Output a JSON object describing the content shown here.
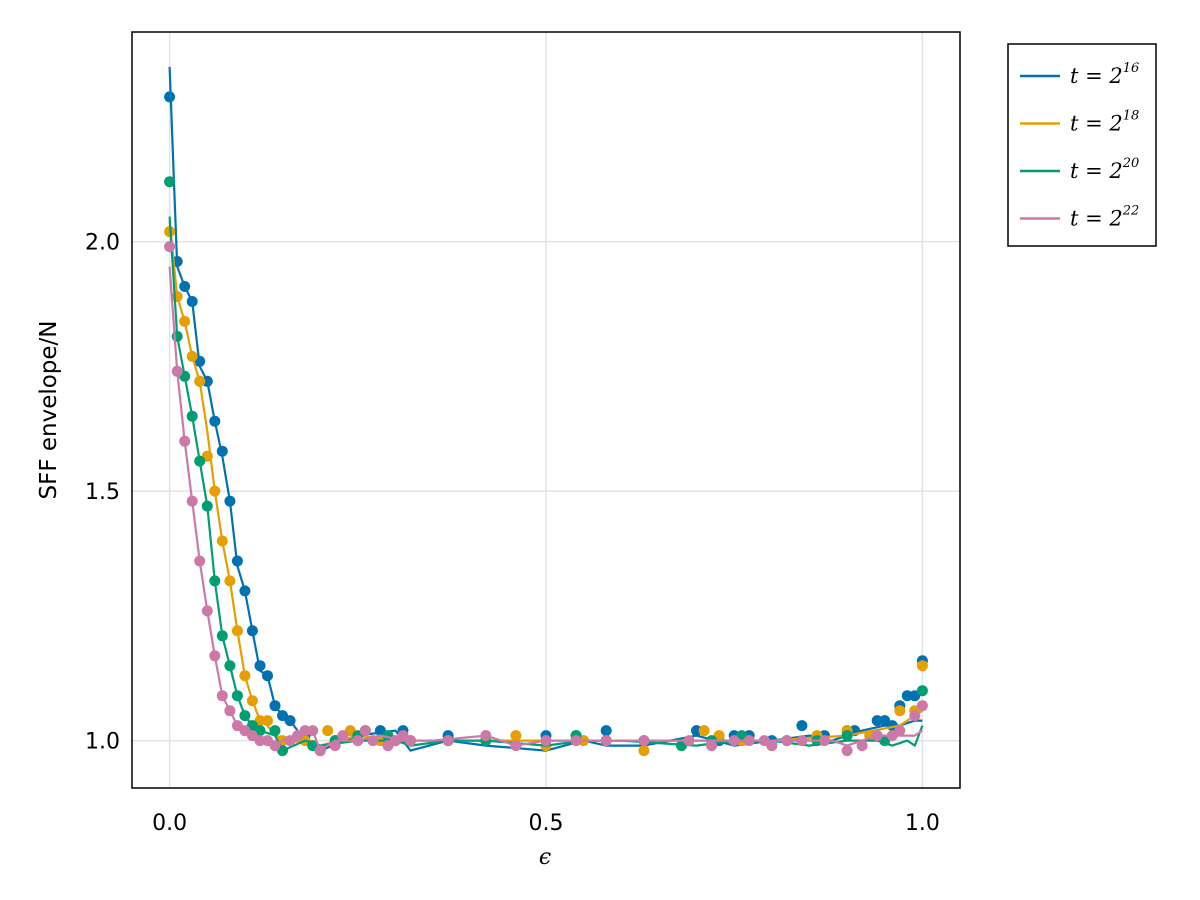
{
  "chart_data": {
    "type": "line",
    "xlabel": "ϵ",
    "ylabel": "SFF envelope/N",
    "xlim": [
      -0.05,
      1.05
    ],
    "ylim": [
      0.905,
      2.42
    ],
    "xticks": [
      0.0,
      0.5,
      1.0
    ],
    "xtick_labels": [
      "0.0",
      "0.5",
      "1.0"
    ],
    "yticks": [
      1.0,
      1.5,
      2.0
    ],
    "ytick_labels": [
      "1.0",
      "1.5",
      "2.0"
    ],
    "grid": true,
    "legend_position": "outside-top-right",
    "series": [
      {
        "name": "t = 2^16",
        "legend_base": "t = 2",
        "legend_exp": "16",
        "color": "#0072b2",
        "line": [
          [
            0.0,
            2.35
          ],
          [
            0.01,
            1.95
          ],
          [
            0.02,
            1.91
          ],
          [
            0.03,
            1.88
          ],
          [
            0.04,
            1.75
          ],
          [
            0.05,
            1.72
          ],
          [
            0.06,
            1.64
          ],
          [
            0.07,
            1.57
          ],
          [
            0.08,
            1.48
          ],
          [
            0.09,
            1.35
          ],
          [
            0.1,
            1.3
          ],
          [
            0.11,
            1.22
          ],
          [
            0.12,
            1.14
          ],
          [
            0.13,
            1.13
          ],
          [
            0.14,
            1.07
          ],
          [
            0.15,
            1.05
          ],
          [
            0.16,
            1.04
          ],
          [
            0.18,
            1.0
          ],
          [
            0.2,
            0.98
          ],
          [
            0.25,
            1.01
          ],
          [
            0.3,
            1.02
          ],
          [
            0.32,
            0.98
          ],
          [
            0.37,
            1.0
          ],
          [
            0.42,
            0.99
          ],
          [
            0.5,
            0.98
          ],
          [
            0.55,
            1.0
          ],
          [
            0.58,
            0.99
          ],
          [
            0.63,
            0.99
          ],
          [
            0.7,
            1.01
          ],
          [
            0.75,
            0.99
          ],
          [
            0.8,
            1.0
          ],
          [
            0.85,
            1.01
          ],
          [
            0.88,
            1.0
          ],
          [
            0.92,
            1.02
          ],
          [
            0.95,
            1.03
          ],
          [
            0.97,
            1.03
          ],
          [
            0.99,
            1.04
          ],
          [
            1.0,
            1.04
          ]
        ],
        "points": [
          [
            0.0,
            2.29
          ],
          [
            0.01,
            1.96
          ],
          [
            0.02,
            1.91
          ],
          [
            0.03,
            1.88
          ],
          [
            0.04,
            1.76
          ],
          [
            0.05,
            1.72
          ],
          [
            0.06,
            1.64
          ],
          [
            0.07,
            1.58
          ],
          [
            0.08,
            1.48
          ],
          [
            0.09,
            1.36
          ],
          [
            0.1,
            1.3
          ],
          [
            0.11,
            1.22
          ],
          [
            0.12,
            1.15
          ],
          [
            0.13,
            1.13
          ],
          [
            0.14,
            1.07
          ],
          [
            0.15,
            1.05
          ],
          [
            0.16,
            1.04
          ],
          [
            0.18,
            1.01
          ],
          [
            0.2,
            0.98
          ],
          [
            0.22,
            1.0
          ],
          [
            0.26,
            1.02
          ],
          [
            0.28,
            1.02
          ],
          [
            0.31,
            1.02
          ],
          [
            0.37,
            1.01
          ],
          [
            0.5,
            1.01
          ],
          [
            0.54,
            1.01
          ],
          [
            0.58,
            1.02
          ],
          [
            0.63,
            1.0
          ],
          [
            0.7,
            1.02
          ],
          [
            0.73,
            1.0
          ],
          [
            0.75,
            1.01
          ],
          [
            0.77,
            1.01
          ],
          [
            0.8,
            1.0
          ],
          [
            0.84,
            1.03
          ],
          [
            0.87,
            1.01
          ],
          [
            0.9,
            1.02
          ],
          [
            0.91,
            1.02
          ],
          [
            0.94,
            1.04
          ],
          [
            0.95,
            1.04
          ],
          [
            0.96,
            1.03
          ],
          [
            0.97,
            1.07
          ],
          [
            0.98,
            1.09
          ],
          [
            0.99,
            1.09
          ],
          [
            1.0,
            1.16
          ]
        ]
      },
      {
        "name": "t = 2^18",
        "legend_base": "t = 2",
        "legend_exp": "18",
        "color": "#e69f00",
        "line": [
          [
            0.0,
            2.04
          ],
          [
            0.01,
            1.89
          ],
          [
            0.02,
            1.84
          ],
          [
            0.03,
            1.77
          ],
          [
            0.04,
            1.72
          ],
          [
            0.05,
            1.62
          ],
          [
            0.06,
            1.5
          ],
          [
            0.07,
            1.4
          ],
          [
            0.08,
            1.32
          ],
          [
            0.09,
            1.22
          ],
          [
            0.1,
            1.13
          ],
          [
            0.11,
            1.08
          ],
          [
            0.12,
            1.04
          ],
          [
            0.13,
            1.03
          ],
          [
            0.14,
            1.01
          ],
          [
            0.16,
            1.0
          ],
          [
            0.2,
            0.99
          ],
          [
            0.25,
            1.01
          ],
          [
            0.3,
            1.0
          ],
          [
            0.4,
            1.0
          ],
          [
            0.5,
            1.0
          ],
          [
            0.6,
            1.0
          ],
          [
            0.7,
            1.0
          ],
          [
            0.8,
            1.0
          ],
          [
            0.9,
            1.01
          ],
          [
            0.97,
            1.03
          ],
          [
            1.0,
            1.06
          ]
        ],
        "points": [
          [
            0.0,
            2.02
          ],
          [
            0.01,
            1.89
          ],
          [
            0.02,
            1.84
          ],
          [
            0.03,
            1.77
          ],
          [
            0.04,
            1.72
          ],
          [
            0.05,
            1.57
          ],
          [
            0.06,
            1.5
          ],
          [
            0.07,
            1.4
          ],
          [
            0.08,
            1.32
          ],
          [
            0.09,
            1.22
          ],
          [
            0.1,
            1.13
          ],
          [
            0.11,
            1.08
          ],
          [
            0.12,
            1.04
          ],
          [
            0.13,
            1.04
          ],
          [
            0.15,
            1.0
          ],
          [
            0.18,
            1.0
          ],
          [
            0.21,
            1.02
          ],
          [
            0.24,
            1.02
          ],
          [
            0.28,
            1.0
          ],
          [
            0.3,
            1.0
          ],
          [
            0.37,
            1.0
          ],
          [
            0.42,
            1.01
          ],
          [
            0.46,
            1.01
          ],
          [
            0.5,
            0.99
          ],
          [
            0.55,
            1.0
          ],
          [
            0.58,
            1.0
          ],
          [
            0.63,
            0.98
          ],
          [
            0.71,
            1.02
          ],
          [
            0.73,
            1.01
          ],
          [
            0.76,
            1.0
          ],
          [
            0.8,
            0.99
          ],
          [
            0.86,
            1.01
          ],
          [
            0.9,
            1.02
          ],
          [
            0.93,
            1.01
          ],
          [
            0.97,
            1.06
          ],
          [
            0.99,
            1.06
          ],
          [
            1.0,
            1.15
          ]
        ]
      },
      {
        "name": "t = 2^20",
        "legend_base": "t = 2",
        "legend_exp": "20",
        "color": "#009e73",
        "line": [
          [
            0.0,
            2.05
          ],
          [
            0.01,
            1.81
          ],
          [
            0.02,
            1.73
          ],
          [
            0.03,
            1.65
          ],
          [
            0.04,
            1.56
          ],
          [
            0.05,
            1.47
          ],
          [
            0.06,
            1.32
          ],
          [
            0.07,
            1.21
          ],
          [
            0.08,
            1.15
          ],
          [
            0.09,
            1.09
          ],
          [
            0.1,
            1.05
          ],
          [
            0.11,
            1.03
          ],
          [
            0.12,
            1.02
          ],
          [
            0.14,
            1.01
          ],
          [
            0.15,
            0.98
          ],
          [
            0.18,
            1.0
          ],
          [
            0.2,
            0.99
          ],
          [
            0.25,
            1.0
          ],
          [
            0.3,
            1.0
          ],
          [
            0.32,
            0.99
          ],
          [
            0.37,
            1.0
          ],
          [
            0.42,
            1.0
          ],
          [
            0.5,
            0.99
          ],
          [
            0.55,
            1.0
          ],
          [
            0.6,
            1.0
          ],
          [
            0.7,
            0.99
          ],
          [
            0.75,
            1.0
          ],
          [
            0.8,
            1.0
          ],
          [
            0.85,
            0.99
          ],
          [
            0.9,
            1.0
          ],
          [
            0.94,
            1.0
          ],
          [
            0.96,
            0.99
          ],
          [
            0.98,
            1.0
          ],
          [
            0.99,
            0.99
          ],
          [
            1.0,
            1.03
          ]
        ],
        "points": [
          [
            0.0,
            2.12
          ],
          [
            0.01,
            1.81
          ],
          [
            0.02,
            1.73
          ],
          [
            0.03,
            1.65
          ],
          [
            0.04,
            1.56
          ],
          [
            0.05,
            1.47
          ],
          [
            0.06,
            1.32
          ],
          [
            0.07,
            1.21
          ],
          [
            0.08,
            1.15
          ],
          [
            0.09,
            1.09
          ],
          [
            0.1,
            1.05
          ],
          [
            0.11,
            1.03
          ],
          [
            0.12,
            1.02
          ],
          [
            0.14,
            1.02
          ],
          [
            0.15,
            0.98
          ],
          [
            0.19,
            0.99
          ],
          [
            0.22,
            1.0
          ],
          [
            0.25,
            1.01
          ],
          [
            0.29,
            1.01
          ],
          [
            0.32,
            1.0
          ],
          [
            0.37,
            1.0
          ],
          [
            0.42,
            1.0
          ],
          [
            0.54,
            1.01
          ],
          [
            0.58,
            1.0
          ],
          [
            0.68,
            0.99
          ],
          [
            0.72,
            1.0
          ],
          [
            0.76,
            1.01
          ],
          [
            0.82,
            1.0
          ],
          [
            0.86,
            1.0
          ],
          [
            0.9,
            1.01
          ],
          [
            0.95,
            1.0
          ],
          [
            1.0,
            1.1
          ]
        ]
      },
      {
        "name": "t = 2^22",
        "legend_base": "t = 2",
        "legend_exp": "22",
        "color": "#cc79a7",
        "line": [
          [
            0.0,
            1.95
          ],
          [
            0.01,
            1.74
          ],
          [
            0.02,
            1.6
          ],
          [
            0.03,
            1.48
          ],
          [
            0.04,
            1.36
          ],
          [
            0.05,
            1.26
          ],
          [
            0.06,
            1.17
          ],
          [
            0.07,
            1.09
          ],
          [
            0.08,
            1.06
          ],
          [
            0.09,
            1.03
          ],
          [
            0.1,
            1.02
          ],
          [
            0.11,
            1.01
          ],
          [
            0.12,
            1.0
          ],
          [
            0.13,
            1.0
          ],
          [
            0.14,
            0.99
          ],
          [
            0.15,
            1.0
          ],
          [
            0.17,
            1.01
          ],
          [
            0.19,
            1.02
          ],
          [
            0.2,
            0.98
          ],
          [
            0.22,
            1.0
          ],
          [
            0.25,
            1.0
          ],
          [
            0.28,
            1.01
          ],
          [
            0.31,
            1.0
          ],
          [
            0.35,
            1.0
          ],
          [
            0.42,
            1.01
          ],
          [
            0.46,
            0.99
          ],
          [
            0.5,
            1.0
          ],
          [
            0.6,
            1.0
          ],
          [
            0.7,
            1.0
          ],
          [
            0.75,
            1.0
          ],
          [
            0.8,
            1.0
          ],
          [
            0.85,
            1.0
          ],
          [
            0.88,
            1.0
          ],
          [
            0.9,
            0.99
          ],
          [
            0.94,
            1.01
          ],
          [
            0.97,
            1.01
          ],
          [
            0.99,
            1.01
          ],
          [
            1.0,
            1.02
          ]
        ],
        "points": [
          [
            0.0,
            1.99
          ],
          [
            0.01,
            1.74
          ],
          [
            0.02,
            1.6
          ],
          [
            0.03,
            1.48
          ],
          [
            0.04,
            1.36
          ],
          [
            0.05,
            1.26
          ],
          [
            0.06,
            1.17
          ],
          [
            0.07,
            1.09
          ],
          [
            0.08,
            1.06
          ],
          [
            0.09,
            1.03
          ],
          [
            0.1,
            1.02
          ],
          [
            0.11,
            1.01
          ],
          [
            0.12,
            1.0
          ],
          [
            0.13,
            1.0
          ],
          [
            0.14,
            0.99
          ],
          [
            0.16,
            1.0
          ],
          [
            0.17,
            1.01
          ],
          [
            0.18,
            1.02
          ],
          [
            0.19,
            1.02
          ],
          [
            0.2,
            0.98
          ],
          [
            0.22,
            0.99
          ],
          [
            0.23,
            1.01
          ],
          [
            0.25,
            1.0
          ],
          [
            0.26,
            1.02
          ],
          [
            0.27,
            1.0
          ],
          [
            0.29,
            0.99
          ],
          [
            0.3,
            1.0
          ],
          [
            0.31,
            1.01
          ],
          [
            0.32,
            1.0
          ],
          [
            0.37,
            1.0
          ],
          [
            0.42,
            1.01
          ],
          [
            0.46,
            0.99
          ],
          [
            0.5,
            1.0
          ],
          [
            0.54,
            1.0
          ],
          [
            0.58,
            1.0
          ],
          [
            0.63,
            1.0
          ],
          [
            0.69,
            1.0
          ],
          [
            0.72,
            0.99
          ],
          [
            0.75,
            1.0
          ],
          [
            0.77,
            1.0
          ],
          [
            0.79,
            1.0
          ],
          [
            0.8,
            0.99
          ],
          [
            0.82,
            1.0
          ],
          [
            0.84,
            1.0
          ],
          [
            0.87,
            1.0
          ],
          [
            0.9,
            0.98
          ],
          [
            0.92,
            0.99
          ],
          [
            0.94,
            1.01
          ],
          [
            0.96,
            1.01
          ],
          [
            0.97,
            1.02
          ],
          [
            0.99,
            1.05
          ],
          [
            1.0,
            1.07
          ]
        ]
      }
    ]
  }
}
